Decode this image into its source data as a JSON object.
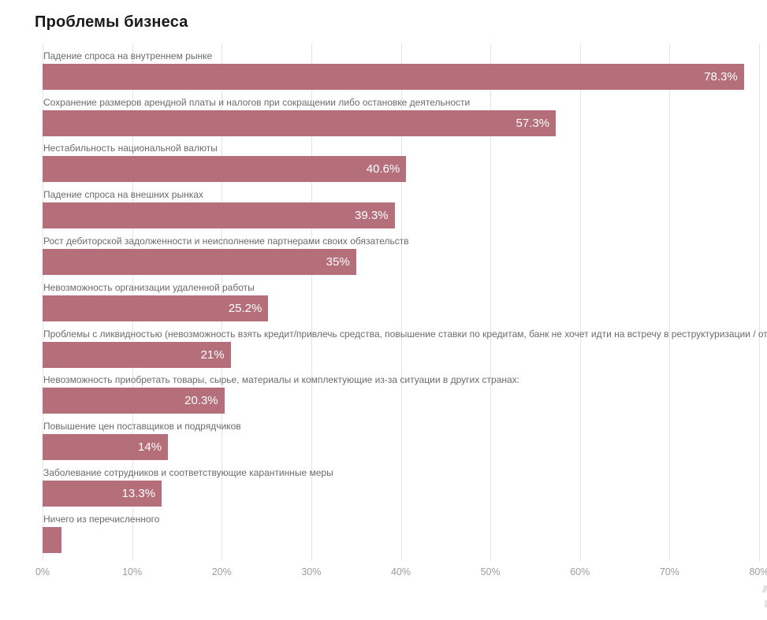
{
  "title": "Проблемы бизнеса",
  "colors": {
    "background": "#ffffff",
    "title_text": "#1a1a1a",
    "bar": "#b56f7a",
    "category_label_text": "#6b6b6b",
    "value_label_text": "#ffffff",
    "axis_tick_text": "#9b9b9b",
    "gridline": "#e4e4e4"
  },
  "chart_data": {
    "type": "bar",
    "orientation": "horizontal",
    "title": "Проблемы бизнеса",
    "xlabel": "",
    "ylabel": "",
    "xlim": [
      0,
      80
    ],
    "grid": true,
    "legend": false,
    "x_ticks": [
      "0%",
      "10%",
      "20%",
      "30%",
      "40%",
      "50%",
      "60%",
      "70%",
      "80%"
    ],
    "categories": [
      "Падение спроса на внутреннем рынке",
      "Сохранение размеров арендной платы и налогов при сокращении либо остановке деятельности",
      "Нестабильность национальной валюты",
      "Падение спроса на внешних рынках",
      "Рост дебиторской задолженности и неисполнение партнерами своих обязательств",
      "Невозможность организации удаленной работы",
      "Проблемы с ликвидностью (невозможность взять кредит/привлечь средства, повышение ставки по кредитам, банк не хочет идти на встречу в реструктуризации / отсрочки",
      "Невозможность приобретать товары, сырье, материалы и комплектующие из-за ситуации в других странах:",
      "Повышение цен поставщиков и подрядчиков",
      "Заболевание сотрудников и соответствующие карантинные меры",
      "Ничего из перечисленного"
    ],
    "values": [
      78.3,
      57.3,
      40.6,
      39.3,
      35,
      25.2,
      21,
      20.3,
      14,
      13.3,
      2.1
    ],
    "value_labels": [
      "78.3%",
      "57.3%",
      "40.6%",
      "39.3%",
      "35%",
      "25.2%",
      "21%",
      "20.3%",
      "14%",
      "13.3%",
      ""
    ]
  }
}
